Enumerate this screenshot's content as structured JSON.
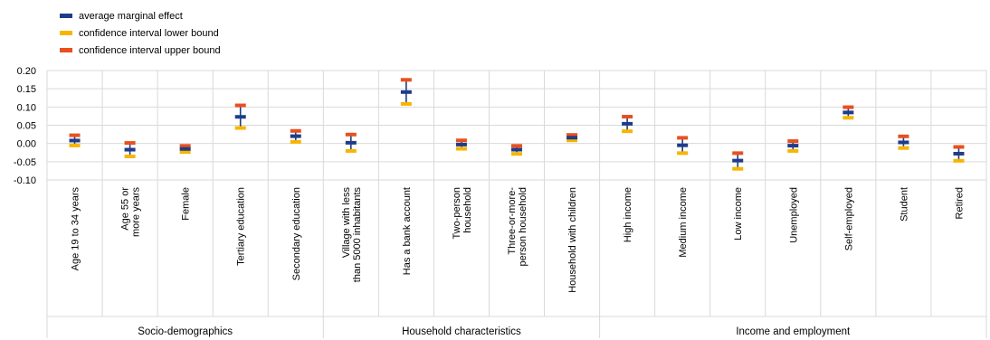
{
  "chart_data": {
    "type": "errorbar",
    "legend": [
      {
        "name": "average marginal effect",
        "color": "#1f3c88"
      },
      {
        "name": "confidence interval lower bound",
        "color": "#f7b500"
      },
      {
        "name": "confidence interval upper bound",
        "color": "#e8501e"
      }
    ],
    "y_ticks": [
      "0.20",
      "0.15",
      "0.10",
      "0.05",
      "0.00",
      "-0.05",
      "-0.10"
    ],
    "ylim": [
      -0.1,
      0.2
    ],
    "grid": true,
    "categories": [
      [
        "Age 19 to 34 years"
      ],
      [
        "Age 55 or",
        "more years"
      ],
      [
        "Female"
      ],
      [
        "Tertiary education"
      ],
      [
        "Secondary education"
      ],
      [
        "Village with less",
        "than 5000 inhabitants"
      ],
      [
        "Has a bank account"
      ],
      [
        "Two-person",
        "household"
      ],
      [
        "Three-or-more-",
        "person household"
      ],
      [
        "Household with children"
      ],
      [
        "High income"
      ],
      [
        "Medium income"
      ],
      [
        "Low income"
      ],
      [
        "Unemployed"
      ],
      [
        "Self-employed"
      ],
      [
        "Student"
      ],
      [
        "Retired"
      ]
    ],
    "mean": [
      0.008,
      -0.017,
      -0.015,
      0.073,
      0.02,
      0.002,
      0.141,
      -0.003,
      -0.017,
      0.016,
      0.054,
      -0.005,
      -0.047,
      -0.006,
      0.085,
      0.003,
      -0.028
    ],
    "lower": [
      -0.003,
      -0.033,
      -0.021,
      0.045,
      0.007,
      -0.018,
      0.111,
      -0.012,
      -0.026,
      0.011,
      0.036,
      -0.024,
      -0.067,
      -0.018,
      0.073,
      -0.01,
      -0.045
    ],
    "upper": [
      0.02,
      -0.001,
      -0.009,
      0.102,
      0.032,
      0.022,
      0.172,
      0.006,
      -0.009,
      0.021,
      0.071,
      0.013,
      -0.029,
      0.004,
      0.097,
      0.017,
      -0.012
    ],
    "groups": [
      {
        "label": "Socio-demographics",
        "start": 0,
        "end": 4
      },
      {
        "label": "Household characteristics",
        "start": 5,
        "end": 9
      },
      {
        "label": "Income and employment",
        "start": 10,
        "end": 16
      }
    ]
  }
}
